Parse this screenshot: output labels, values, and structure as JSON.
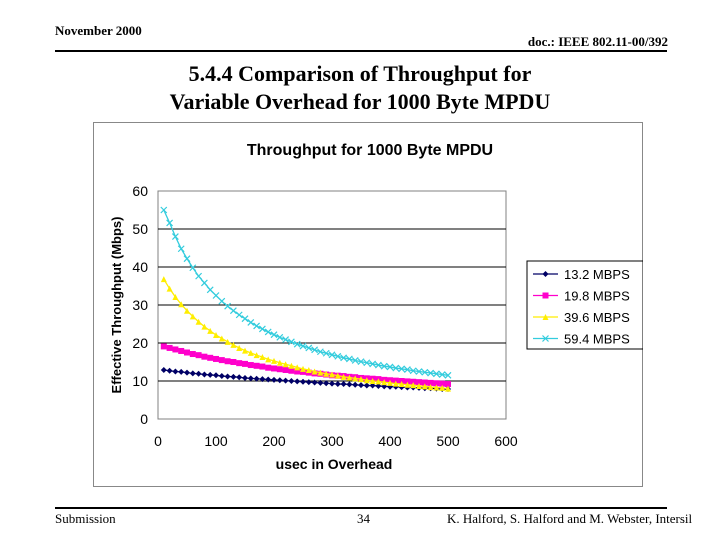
{
  "header": {
    "date": "November 2000",
    "doc": "doc.: IEEE 802.11-00/392"
  },
  "slide": {
    "title_line1": "5.4.4 Comparison of Throughput for",
    "title_line2": "Variable Overhead for 1000 Byte MPDU"
  },
  "footer": {
    "left": "Submission",
    "page": "34",
    "authors": "K. Halford,  S. Halford and M. Webster, Intersil"
  },
  "chart_data": {
    "type": "line",
    "title": "Throughput for 1000 Byte MPDU",
    "xlabel": "usec in Overhead",
    "ylabel": "Effective Throughput (Mbps)",
    "xlim": [
      0,
      600
    ],
    "ylim": [
      0,
      60
    ],
    "xticks": [
      "0",
      "100",
      "200",
      "300",
      "400",
      "500",
      "600"
    ],
    "yticks": [
      "0",
      "10",
      "20",
      "30",
      "40",
      "50",
      "60"
    ],
    "grid": "horizontal",
    "legend": "right",
    "x": [
      10,
      20,
      30,
      40,
      50,
      60,
      70,
      80,
      90,
      100,
      110,
      120,
      130,
      140,
      150,
      160,
      170,
      180,
      190,
      200,
      210,
      220,
      230,
      240,
      250,
      260,
      270,
      280,
      290,
      300,
      310,
      320,
      330,
      340,
      350,
      360,
      370,
      380,
      390,
      400,
      410,
      420,
      430,
      440,
      450,
      460,
      470,
      480,
      490,
      500
    ],
    "series": [
      {
        "name": "13.2 MBPS",
        "color": "#000066",
        "marker": "diamond",
        "values": [
          12.9,
          12.7,
          12.5,
          12.4,
          12.2,
          12.0,
          11.9,
          11.7,
          11.6,
          11.5,
          11.3,
          11.2,
          11.1,
          11.0,
          10.8,
          10.7,
          10.6,
          10.5,
          10.4,
          10.3,
          10.2,
          10.1,
          10.0,
          9.9,
          9.8,
          9.7,
          9.6,
          9.5,
          9.4,
          9.3,
          9.2,
          9.2,
          9.1,
          9.0,
          8.9,
          8.8,
          8.8,
          8.7,
          8.6,
          8.5,
          8.5,
          8.4,
          8.3,
          8.3,
          8.2,
          8.1,
          8.1,
          8.0,
          7.9,
          7.9
        ]
      },
      {
        "name": "19.8 MBPS",
        "color": "#ff00cc",
        "marker": "square",
        "values": [
          19.1,
          18.7,
          18.3,
          17.9,
          17.5,
          17.1,
          16.8,
          16.4,
          16.1,
          15.8,
          15.5,
          15.2,
          15.0,
          14.7,
          14.5,
          14.2,
          14.0,
          13.8,
          13.5,
          13.3,
          13.1,
          12.9,
          12.7,
          12.5,
          12.4,
          12.2,
          12.0,
          11.9,
          11.7,
          11.5,
          11.4,
          11.3,
          11.1,
          11.0,
          10.8,
          10.7,
          10.6,
          10.5,
          10.3,
          10.2,
          10.1,
          10.0,
          9.9,
          9.8,
          9.7,
          9.6,
          9.5,
          9.4,
          9.3,
          9.2
        ]
      },
      {
        "name": "39.6 MBPS",
        "color": "#ffee00",
        "marker": "triangle",
        "values": [
          36.8,
          34.3,
          32.1,
          30.2,
          28.5,
          27.0,
          25.6,
          24.3,
          23.2,
          22.1,
          21.2,
          20.3,
          19.5,
          18.7,
          18.0,
          17.4,
          16.8,
          16.3,
          15.7,
          15.3,
          14.8,
          14.4,
          14.0,
          13.6,
          13.2,
          12.9,
          12.5,
          12.2,
          11.9,
          11.7,
          11.4,
          11.1,
          10.9,
          10.7,
          10.5,
          10.2,
          10.0,
          9.9,
          9.7,
          9.5,
          9.3,
          9.2,
          9.0,
          8.9,
          8.7,
          8.6,
          8.4,
          8.3,
          8.2,
          8.0
        ]
      },
      {
        "name": "59.4 MBPS",
        "color": "#33ccdd",
        "marker": "x",
        "values": [
          55.0,
          51.6,
          48.0,
          44.8,
          42.2,
          39.8,
          37.6,
          35.8,
          34.0,
          32.5,
          31.0,
          29.7,
          28.5,
          27.4,
          26.4,
          25.4,
          24.5,
          23.7,
          22.9,
          22.2,
          21.5,
          20.9,
          20.3,
          19.7,
          19.2,
          18.7,
          18.2,
          17.7,
          17.3,
          16.9,
          16.5,
          16.1,
          15.8,
          15.4,
          15.1,
          14.8,
          14.5,
          14.2,
          13.9,
          13.7,
          13.4,
          13.2,
          13.0,
          12.7,
          12.5,
          12.3,
          12.1,
          11.9,
          11.7,
          11.5
        ]
      }
    ]
  }
}
